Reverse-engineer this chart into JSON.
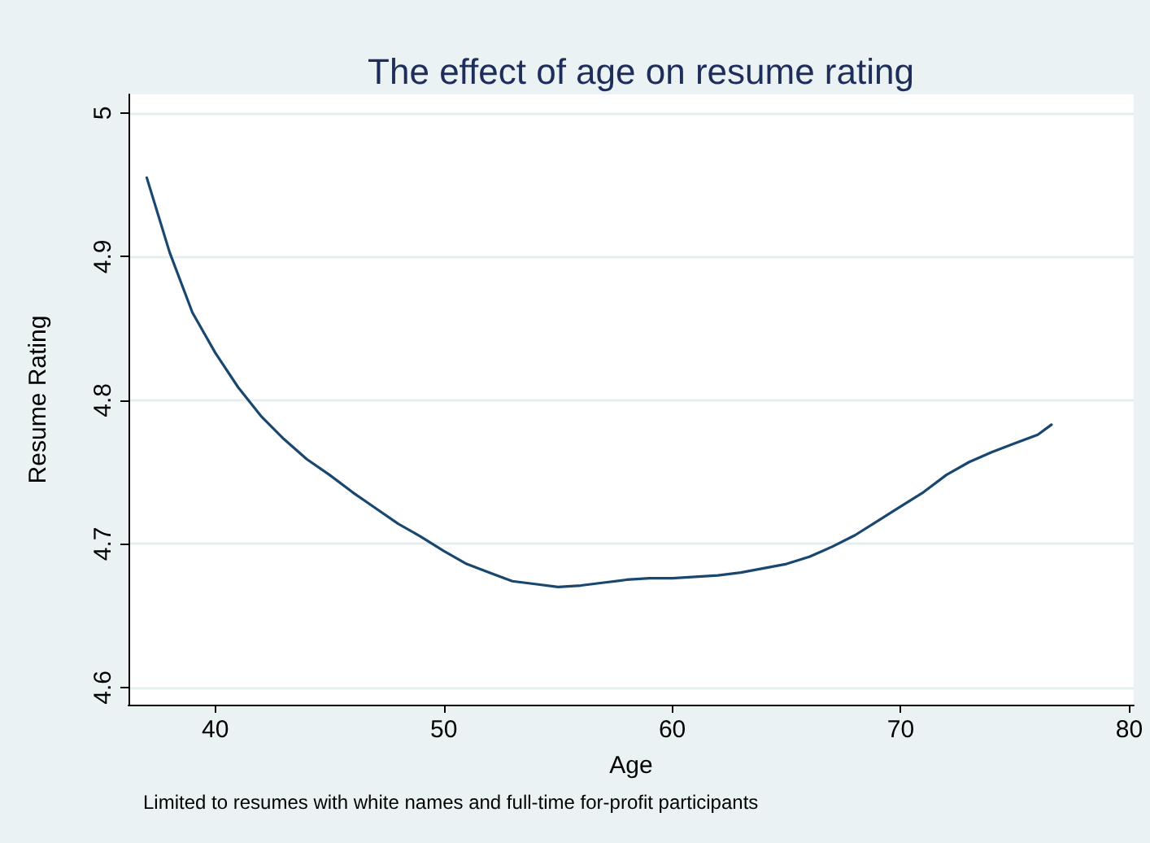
{
  "chart_data": {
    "type": "line",
    "title": "The effect of age on resume rating",
    "xlabel": "Age",
    "ylabel": "Resume Rating",
    "annotations": [
      "Limited to resumes with white names and full-time for-profit participants"
    ],
    "x": [
      37,
      38,
      39,
      40,
      41,
      42,
      43,
      44,
      45,
      46,
      47,
      48,
      49,
      50,
      51,
      52,
      53,
      54,
      55,
      56,
      57,
      58,
      59,
      60,
      61,
      62,
      63,
      64,
      65,
      66,
      67,
      68,
      69,
      70,
      71,
      72,
      73,
      74,
      75,
      76,
      76.6
    ],
    "series": [
      {
        "color": "#1a476f",
        "values": [
          4.955,
          4.903,
          4.861,
          4.833,
          4.809,
          4.789,
          4.773,
          4.759,
          4.748,
          4.736,
          4.725,
          4.714,
          4.705,
          4.695,
          4.686,
          4.68,
          4.674,
          4.672,
          4.67,
          4.671,
          4.673,
          4.675,
          4.676,
          4.676,
          4.677,
          4.678,
          4.68,
          4.683,
          4.686,
          4.691,
          4.698,
          4.706,
          4.716,
          4.726,
          4.736,
          4.748,
          4.757,
          4.764,
          4.77,
          4.776,
          4.783
        ]
      }
    ],
    "xlim": [
      36.2,
      80.2
    ],
    "xticks": [
      40,
      50,
      60,
      70,
      80
    ],
    "ylim": [
      4.588,
      5.013
    ],
    "yticks": [
      4.6,
      4.7,
      4.8,
      4.9,
      5
    ],
    "grid": "y",
    "marker": "none",
    "line_style": "solid"
  }
}
